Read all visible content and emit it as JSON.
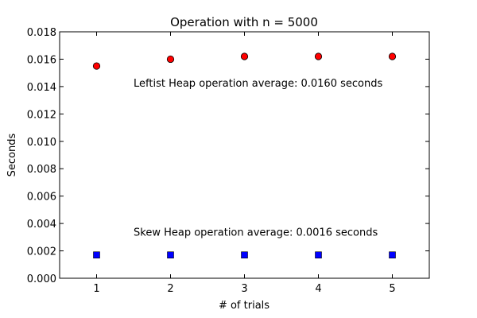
{
  "chart_data": {
    "type": "scatter",
    "title": "Operation with n = 5000",
    "xlabel": "# of trials",
    "ylabel": "Seconds",
    "xlim": [
      0.5,
      5.5
    ],
    "ylim": [
      0.0,
      0.018
    ],
    "x_ticks": [
      1,
      2,
      3,
      4,
      5
    ],
    "x_tick_labels": [
      "1",
      "2",
      "3",
      "4",
      "5"
    ],
    "y_ticks": [
      0.0,
      0.002,
      0.004,
      0.006,
      0.008,
      0.01,
      0.012,
      0.014,
      0.016,
      0.018
    ],
    "y_tick_labels": [
      "0.000",
      "0.002",
      "0.004",
      "0.006",
      "0.008",
      "0.010",
      "0.012",
      "0.014",
      "0.016",
      "0.018"
    ],
    "grid": false,
    "series": [
      {
        "marker": "circle",
        "color": "#ff0000",
        "x": [
          1,
          2,
          3,
          4,
          5
        ],
        "values": [
          0.0155,
          0.016,
          0.0162,
          0.0162,
          0.0162
        ]
      },
      {
        "marker": "square",
        "color": "#0000ff",
        "x": [
          1,
          2,
          3,
          4,
          5
        ],
        "values": [
          0.0017,
          0.0017,
          0.0017,
          0.0017,
          0.0017
        ]
      }
    ],
    "annotations": [
      {
        "text": "Leftist Heap operation average: 0.0160 seconds",
        "x": 1.5,
        "y": 0.014
      },
      {
        "text": "Skew Heap operation average: 0.0016 seconds",
        "x": 1.5,
        "y": 0.0031
      }
    ]
  }
}
